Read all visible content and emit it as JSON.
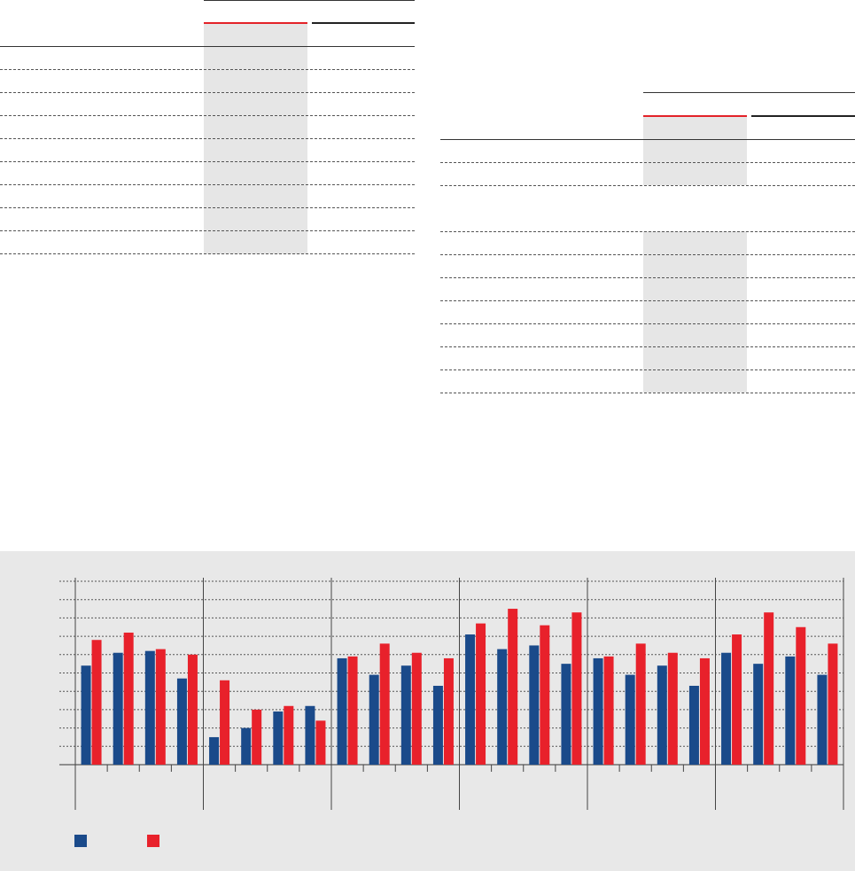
{
  "colors": {
    "series_blue": "#1a4a8a",
    "series_red": "#e8212b",
    "panel_background": "#e8e8e8",
    "column_shade": "#e6e6e6"
  },
  "table_top_left": {
    "rows": 9,
    "has_highlight_column": true
  },
  "table_right": {
    "rows": 11,
    "has_highlight_column": true
  },
  "chart_data": {
    "type": "bar",
    "title": "",
    "xlabel": "",
    "ylabel": "",
    "ylim": [
      0,
      10
    ],
    "grid": true,
    "legend_position": "bottom-left",
    "groups": 6,
    "bars_per_group": 4,
    "series": [
      {
        "color": "#1a4a8a",
        "values": [
          5.4,
          6.1,
          6.2,
          4.7,
          1.5,
          2.0,
          2.9,
          3.2,
          5.8,
          4.9,
          5.4,
          4.3,
          7.1,
          6.3,
          6.5,
          5.5,
          5.8,
          4.9,
          5.4,
          4.3,
          6.1,
          5.5,
          5.9,
          4.9
        ]
      },
      {
        "color": "#e8212b",
        "values": [
          6.8,
          7.2,
          6.3,
          6.0,
          4.6,
          3.0,
          3.2,
          2.4,
          5.9,
          6.6,
          6.1,
          5.8,
          7.7,
          8.5,
          7.6,
          8.3,
          5.9,
          6.6,
          6.1,
          5.8,
          7.1,
          8.3,
          7.5,
          6.6
        ]
      }
    ]
  }
}
